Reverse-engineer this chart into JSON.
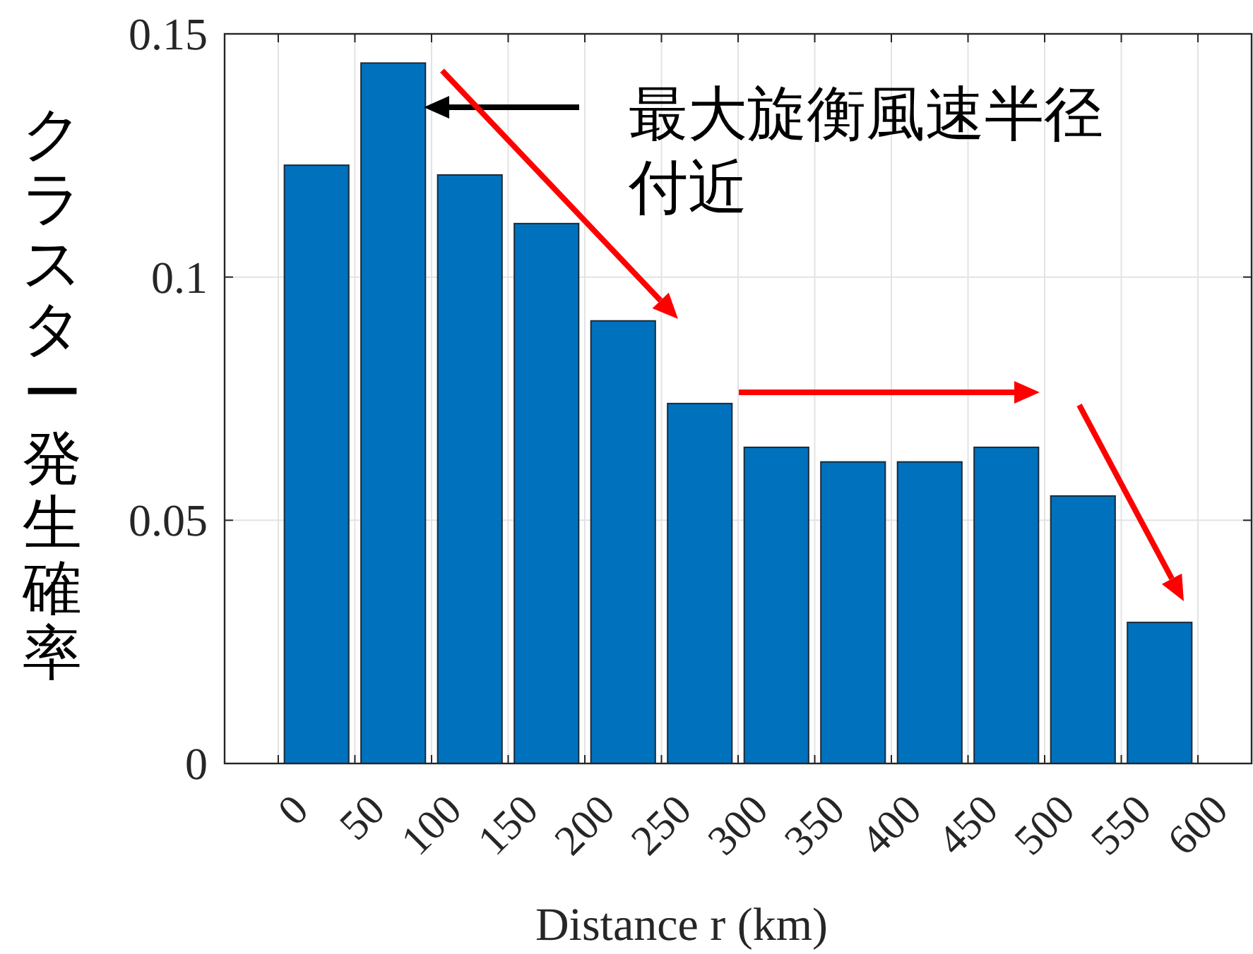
{
  "chart_data": {
    "type": "histogram",
    "xlabel": "Distance r (km)",
    "ylabel": "クラスター発生確率",
    "bins": [
      0,
      50,
      100,
      150,
      200,
      250,
      300,
      350,
      400,
      450,
      500,
      550,
      600
    ],
    "values": [
      0.123,
      0.144,
      0.121,
      0.111,
      0.091,
      0.074,
      0.065,
      0.062,
      0.062,
      0.065,
      0.055,
      0.029
    ],
    "color": "#0072bd",
    "xlim": [
      -35,
      635
    ],
    "xticks": [
      0,
      50,
      100,
      150,
      200,
      250,
      300,
      350,
      400,
      450,
      500,
      550,
      600
    ],
    "ylim": [
      0,
      0.15
    ],
    "yticks": [
      0,
      0.05,
      {
        "value": 0.1,
        "label": "0.1"
      },
      0.15
    ],
    "grid": true,
    "annotations": [
      "最大旋衡風速半径付近"
    ]
  }
}
